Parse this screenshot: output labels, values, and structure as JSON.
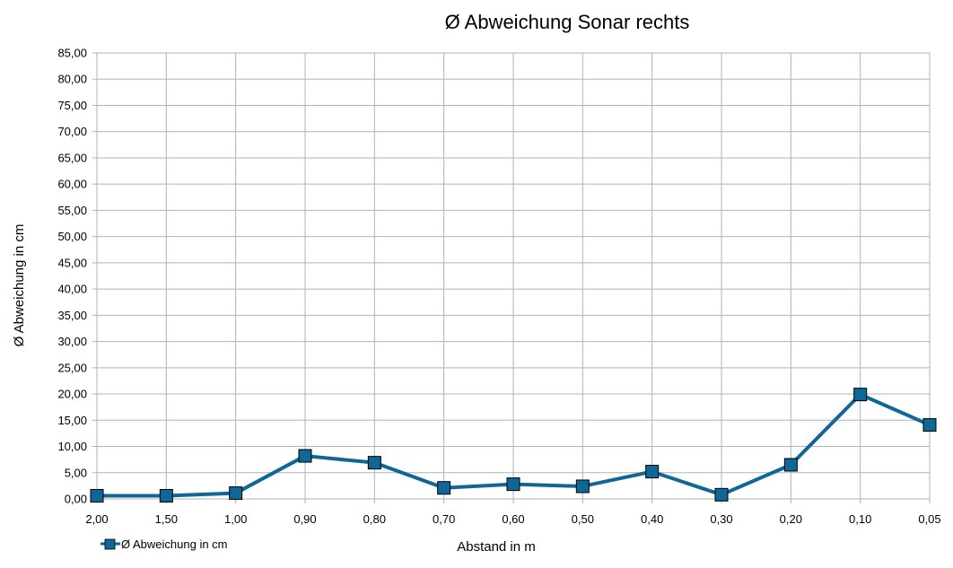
{
  "chart_data": {
    "type": "line",
    "title": "Ø Abweichung Sonar rechts",
    "xlabel": "Abstand in m",
    "ylabel": "Ø  Abweichung in cm",
    "categories": [
      "2,00",
      "1,50",
      "1,00",
      "0,90",
      "0,80",
      "0,70",
      "0,60",
      "0,50",
      "0,40",
      "0,30",
      "0,20",
      "0,10",
      "0,05"
    ],
    "series": [
      {
        "name": "Ø Abweichung in cm",
        "values": [
          0.6,
          0.6,
          1.1,
          8.2,
          6.9,
          2.1,
          2.8,
          2.4,
          5.2,
          0.8,
          6.5,
          19.9,
          14.1
        ],
        "color": "#0e6796",
        "marker": "square"
      }
    ],
    "ylim": [
      0,
      85
    ],
    "y_ticks": [
      "0,00",
      "5,00",
      "10,00",
      "15,00",
      "20,00",
      "25,00",
      "30,00",
      "35,00",
      "40,00",
      "45,00",
      "50,00",
      "55,00",
      "60,00",
      "65,00",
      "70,00",
      "75,00",
      "80,00",
      "85,00"
    ],
    "grid": true,
    "legend_position": "bottom-left"
  }
}
